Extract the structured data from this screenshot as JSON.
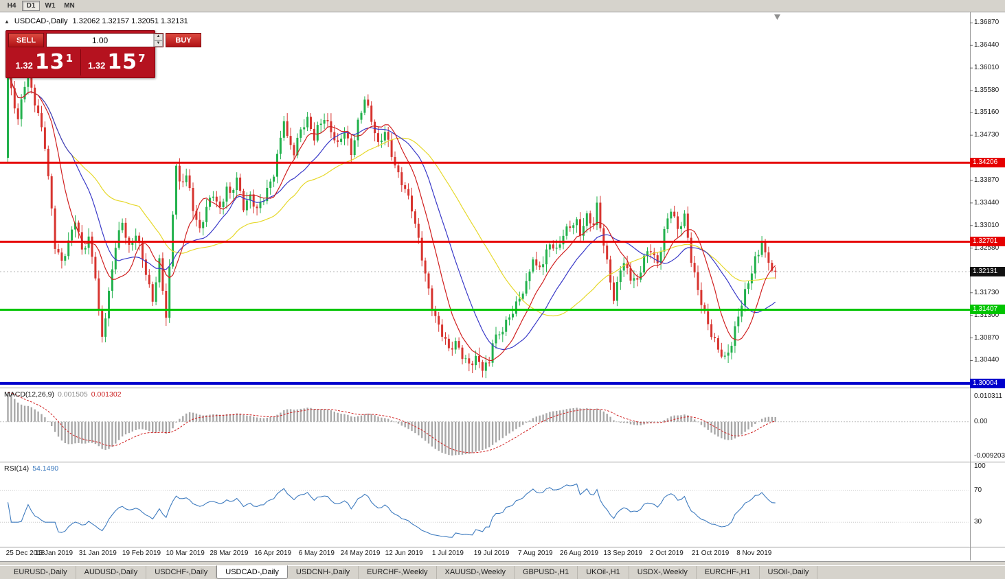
{
  "toolbar": {
    "periods": [
      "H4",
      "D1",
      "W1",
      "MN"
    ],
    "active": "D1"
  },
  "chart": {
    "title_symbol": "USDCAD-,Daily",
    "ohlc": "1.32062 1.32157 1.32051 1.32131"
  },
  "one_click": {
    "sell_label": "SELL",
    "buy_label": "BUY",
    "volume": "1.00",
    "sell_prefix": "1.32",
    "sell_big": "13",
    "sell_sup": "1",
    "buy_prefix": "1.32",
    "buy_big": "15",
    "buy_sup": "7"
  },
  "indicators": {
    "macd_label": "MACD(12,26,9)",
    "macd_value": "0.001505",
    "macd_signal_value": "0.001302",
    "macd_scale": {
      "top": "0.010311",
      "zero": "0.00",
      "bottom": "-0.009203"
    },
    "rsi_label": "RSI(14)",
    "rsi_value": "54.1490",
    "rsi_levels": [
      100,
      70,
      30
    ]
  },
  "price_scale": {
    "ticks": [
      "1.36870",
      "1.36440",
      "1.36010",
      "1.35580",
      "1.35160",
      "1.34730",
      "1.33870",
      "1.33440",
      "1.33010",
      "1.32580",
      "1.31730",
      "1.31300",
      "1.30870",
      "1.30440"
    ],
    "lines": [
      {
        "value": 1.34206,
        "label": "1.34206",
        "color": "#e60000",
        "width": 3
      },
      {
        "value": 1.32701,
        "label": "1.32701",
        "color": "#e60000",
        "width": 3
      },
      {
        "value": 1.31407,
        "label": "1.31407",
        "color": "#00c400",
        "width": 3
      },
      {
        "value": 1.30004,
        "label": "1.30004",
        "color": "#0000cc",
        "width": 4
      }
    ],
    "current": {
      "value": 1.32131,
      "label": "1.32131",
      "color": "#111111"
    }
  },
  "colors": {
    "up": "#22b14c",
    "down": "#d7342f",
    "ma_fast": "#d02020",
    "ma_mid": "#3a3ac8",
    "ma_slow": "#e6d82a",
    "macd_bar": "#a8a8a8",
    "macd_signal": "#d02020",
    "rsi": "#3e7bbf"
  },
  "chart_data": {
    "type": "candlestick",
    "symbol": "USDCAD",
    "timeframe": "Daily",
    "bars": 229,
    "ylim": [
      1.2995,
      1.3707
    ],
    "first_open": 1.343,
    "last_close": 1.32131,
    "moving_averages": [
      {
        "period": 10,
        "color": "red"
      },
      {
        "period": 20,
        "color": "blue"
      },
      {
        "period": 40,
        "color": "yellow"
      }
    ],
    "price_anchors": [
      [
        0,
        1.3585
      ],
      [
        1,
        1.3555
      ],
      [
        3,
        1.3505
      ],
      [
        5,
        1.3575
      ],
      [
        6,
        1.3598
      ],
      [
        7,
        1.356
      ],
      [
        9,
        1.351
      ],
      [
        11,
        1.345
      ],
      [
        13,
        1.333
      ],
      [
        14,
        1.3265
      ],
      [
        16,
        1.3235
      ],
      [
        18,
        1.327
      ],
      [
        20,
        1.331
      ],
      [
        22,
        1.325
      ],
      [
        24,
        1.3275
      ],
      [
        26,
        1.321
      ],
      [
        27,
        1.314
      ],
      [
        28,
        1.3092
      ],
      [
        30,
        1.317
      ],
      [
        32,
        1.326
      ],
      [
        34,
        1.3305
      ],
      [
        36,
        1.326
      ],
      [
        38,
        1.329
      ],
      [
        40,
        1.324
      ],
      [
        42,
        1.318
      ],
      [
        43,
        1.3155
      ],
      [
        45,
        1.323
      ],
      [
        46,
        1.318
      ],
      [
        47,
        1.313
      ],
      [
        48,
        1.322
      ],
      [
        49,
        1.333
      ],
      [
        50,
        1.342
      ],
      [
        51,
        1.338
      ],
      [
        53,
        1.3395
      ],
      [
        55,
        1.333
      ],
      [
        57,
        1.329
      ],
      [
        59,
        1.334
      ],
      [
        61,
        1.3365
      ],
      [
        63,
        1.333
      ],
      [
        65,
        1.337
      ],
      [
        66,
        1.3355
      ],
      [
        68,
        1.339
      ],
      [
        70,
        1.334
      ],
      [
        72,
        1.336
      ],
      [
        74,
        1.333
      ],
      [
        76,
        1.335
      ],
      [
        78,
        1.338
      ],
      [
        79,
        1.34
      ],
      [
        81,
        1.347
      ],
      [
        82,
        1.351
      ],
      [
        83,
        1.347
      ],
      [
        85,
        1.344
      ],
      [
        87,
        1.348
      ],
      [
        89,
        1.35
      ],
      [
        91,
        1.347
      ],
      [
        92,
        1.349
      ],
      [
        94,
        1.351
      ],
      [
        96,
        1.348
      ],
      [
        98,
        1.345
      ],
      [
        100,
        1.348
      ],
      [
        102,
        1.344
      ],
      [
        104,
        1.35
      ],
      [
        106,
        1.3545
      ],
      [
        108,
        1.35
      ],
      [
        110,
        1.345
      ],
      [
        112,
        1.348
      ],
      [
        114,
        1.344
      ],
      [
        116,
        1.34
      ],
      [
        118,
        1.337
      ],
      [
        120,
        1.333
      ],
      [
        122,
        1.327
      ],
      [
        124,
        1.321
      ],
      [
        126,
        1.315
      ],
      [
        128,
        1.311
      ],
      [
        130,
        1.308
      ],
      [
        131,
        1.306
      ],
      [
        133,
        1.3075
      ],
      [
        135,
        1.3055
      ],
      [
        137,
        1.304
      ],
      [
        139,
        1.305
      ],
      [
        141,
        1.3028
      ],
      [
        143,
        1.3035
      ],
      [
        144,
        1.308
      ],
      [
        146,
        1.3095
      ],
      [
        148,
        1.312
      ],
      [
        150,
        1.314
      ],
      [
        152,
        1.316
      ],
      [
        154,
        1.3185
      ],
      [
        156,
        1.324
      ],
      [
        157,
        1.322
      ],
      [
        159,
        1.3235
      ],
      [
        161,
        1.327
      ],
      [
        163,
        1.325
      ],
      [
        165,
        1.328
      ],
      [
        167,
        1.33
      ],
      [
        169,
        1.331
      ],
      [
        170,
        1.329
      ],
      [
        172,
        1.332
      ],
      [
        174,
        1.33
      ],
      [
        175,
        1.3335
      ],
      [
        177,
        1.326
      ],
      [
        179,
        1.32
      ],
      [
        180,
        1.316
      ],
      [
        182,
        1.3225
      ],
      [
        183,
        1.323
      ],
      [
        185,
        1.32
      ],
      [
        187,
        1.319
      ],
      [
        189,
        1.324
      ],
      [
        191,
        1.326
      ],
      [
        193,
        1.323
      ],
      [
        195,
        1.329
      ],
      [
        196,
        1.331
      ],
      [
        197,
        1.333
      ],
      [
        199,
        1.329
      ],
      [
        201,
        1.332
      ],
      [
        203,
        1.324
      ],
      [
        205,
        1.318
      ],
      [
        207,
        1.313
      ],
      [
        209,
        1.309
      ],
      [
        211,
        1.3065
      ],
      [
        213,
        1.305
      ],
      [
        215,
        1.308
      ],
      [
        217,
        1.313
      ],
      [
        219,
        1.317
      ],
      [
        221,
        1.321
      ],
      [
        222,
        1.3235
      ],
      [
        223,
        1.3245
      ],
      [
        224,
        1.327
      ],
      [
        226,
        1.323
      ],
      [
        227,
        1.3215
      ],
      [
        228,
        1.32131
      ]
    ],
    "x_labels": [
      {
        "label": "25 Dec 2018",
        "index": 1
      },
      {
        "label": "13 Jan 2019",
        "index": 14
      },
      {
        "label": "31 Jan 2019",
        "index": 27
      },
      {
        "label": "19 Feb 2019",
        "index": 40
      },
      {
        "label": "10 Mar 2019",
        "index": 53
      },
      {
        "label": "28 Mar 2019",
        "index": 66
      },
      {
        "label": "16 Apr 2019",
        "index": 79
      },
      {
        "label": "6 May 2019",
        "index": 92
      },
      {
        "label": "24 May 2019",
        "index": 105
      },
      {
        "label": "12 Jun 2019",
        "index": 118
      },
      {
        "label": "1 Jul 2019",
        "index": 131
      },
      {
        "label": "19 Jul 2019",
        "index": 144
      },
      {
        "label": "7 Aug 2019",
        "index": 157
      },
      {
        "label": "26 Aug 2019",
        "index": 170
      },
      {
        "label": "13 Sep 2019",
        "index": 183
      },
      {
        "label": "2 Oct 2019",
        "index": 196
      },
      {
        "label": "21 Oct 2019",
        "index": 209
      },
      {
        "label": "8 Nov 2019",
        "index": 222
      }
    ]
  },
  "tabs": [
    {
      "label": "EURUSD-,Daily"
    },
    {
      "label": "AUDUSD-,Daily"
    },
    {
      "label": "USDCHF-,Daily"
    },
    {
      "label": "USDCAD-,Daily",
      "active": true
    },
    {
      "label": "USDCNH-,Daily"
    },
    {
      "label": "EURCHF-,Weekly"
    },
    {
      "label": "XAUUSD-,Weekly"
    },
    {
      "label": "GBPUSD-,H1"
    },
    {
      "label": "UKOil-,H1"
    },
    {
      "label": "USDX-,Weekly"
    },
    {
      "label": "EURCHF-,H1"
    },
    {
      "label": "USOil-,Daily"
    }
  ]
}
